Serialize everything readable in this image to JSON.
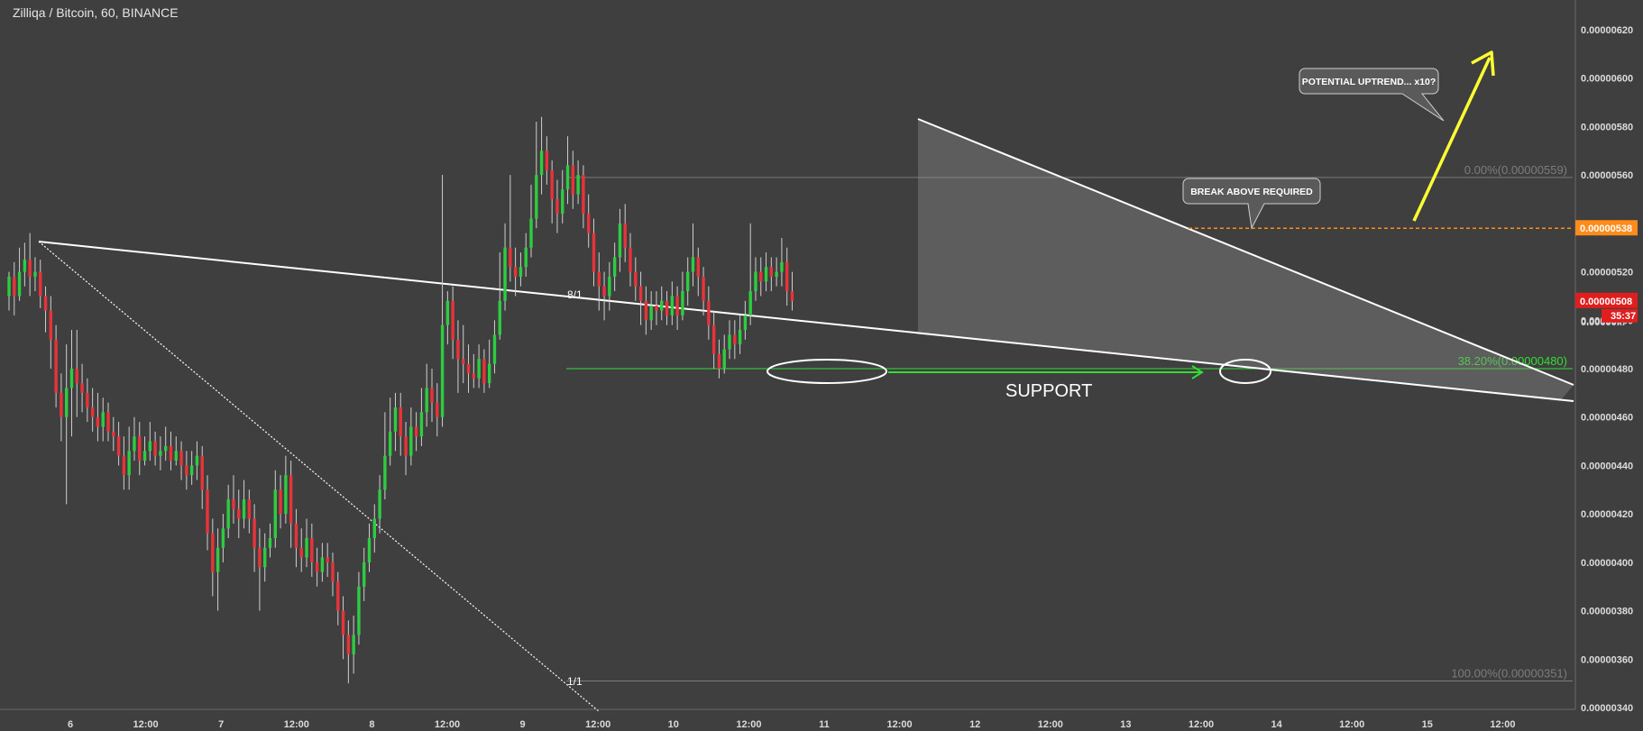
{
  "header": {
    "title": "Zilliqa / Bitcoin, 60, BINANCE"
  },
  "colors": {
    "background": "#3f3f3f",
    "up": "#2ecc40",
    "down": "#e8333a",
    "support": "#33dd33",
    "current_price": "#ff8c1a",
    "last_price": "#e01e1e",
    "arrow": "#ffff33",
    "line": "#ffffff"
  },
  "chart_data": {
    "type": "candlestick",
    "symbol": "Zilliqa / Bitcoin",
    "interval": "60",
    "exchange": "BINANCE",
    "ylim": [
      3.4e-06,
      6.2e-06
    ],
    "y_ticks": [
      "0.00000620",
      "0.00000600",
      "0.00000580",
      "0.00000560",
      "0.00000540",
      "0.00000520",
      "0.00000500",
      "0.00000480",
      "0.00000460",
      "0.00000440",
      "0.00000420",
      "0.00000400",
      "0.00000380",
      "0.00000360",
      "0.00000340"
    ],
    "x_ticks": [
      "6",
      "12:00",
      "7",
      "12:00",
      "8",
      "12:00",
      "9",
      "12:00",
      "10",
      "12:00",
      "11",
      "12:00",
      "12",
      "12:00",
      "13",
      "12:00",
      "14",
      "12:00",
      "15",
      "12:00"
    ],
    "price_labels": {
      "alert": "0.00000538",
      "last": "0.00000508",
      "countdown": "35:37",
      "partial": "0.00000..."
    },
    "fib_levels": [
      {
        "label": "0.00%(0.00000559)",
        "value": 5.59e-06
      },
      {
        "label": "38.20%(0.00000480)",
        "value": 4.8e-06
      },
      {
        "label": "100.00%(0.00000351)",
        "value": 3.51e-06
      }
    ],
    "annotations": {
      "support": "SUPPORT",
      "break_above": "BREAK ABOVE REQUIRED",
      "uptrend": "POTENTIAL UPTREND... x10?",
      "gann_top": "8/1",
      "gann_bottom": "1/1"
    },
    "ohlc": [
      [
        5.1,
        5.18,
        5.2,
        5.04
      ],
      [
        5.18,
        5.1,
        5.24,
        5.02
      ],
      [
        5.1,
        5.2,
        5.3,
        5.08
      ],
      [
        5.2,
        5.25,
        5.32,
        5.14
      ],
      [
        5.25,
        5.18,
        5.36,
        5.1
      ],
      [
        5.18,
        5.2,
        5.26,
        5.12
      ],
      [
        5.2,
        5.1,
        5.25,
        5.05
      ],
      [
        5.1,
        5.04,
        5.14,
        4.95
      ],
      [
        5.04,
        4.92,
        5.1,
        4.8
      ],
      [
        4.92,
        4.7,
        4.98,
        4.64
      ],
      [
        4.7,
        4.6,
        4.78,
        4.5
      ],
      [
        4.6,
        4.72,
        4.9,
        4.24
      ],
      [
        4.72,
        4.8,
        4.96,
        4.52
      ],
      [
        4.8,
        4.74,
        4.96,
        4.6
      ],
      [
        4.74,
        4.7,
        4.82,
        4.62
      ],
      [
        4.7,
        4.64,
        4.76,
        4.58
      ],
      [
        4.64,
        4.6,
        4.72,
        4.54
      ],
      [
        4.6,
        4.56,
        4.7,
        4.5
      ],
      [
        4.56,
        4.62,
        4.68,
        4.5
      ],
      [
        4.62,
        4.54,
        4.66,
        4.5
      ],
      [
        4.54,
        4.52,
        4.6,
        4.46
      ],
      [
        4.52,
        4.44,
        4.58,
        4.4
      ],
      [
        4.44,
        4.36,
        4.52,
        4.3
      ],
      [
        4.36,
        4.46,
        4.56,
        4.3
      ],
      [
        4.46,
        4.52,
        4.6,
        4.42
      ],
      [
        4.52,
        4.42,
        4.58,
        4.36
      ],
      [
        4.42,
        4.46,
        4.52,
        4.4
      ],
      [
        4.46,
        4.5,
        4.58,
        4.42
      ],
      [
        4.5,
        4.44,
        4.54,
        4.4
      ],
      [
        4.44,
        4.46,
        4.52,
        4.38
      ],
      [
        4.46,
        4.48,
        4.56,
        4.42
      ],
      [
        4.48,
        4.42,
        4.54,
        4.38
      ],
      [
        4.42,
        4.46,
        4.52,
        4.4
      ],
      [
        4.46,
        4.4,
        4.5,
        4.34
      ],
      [
        4.4,
        4.36,
        4.46,
        4.3
      ],
      [
        4.36,
        4.4,
        4.46,
        4.32
      ],
      [
        4.4,
        4.44,
        4.5,
        4.34
      ],
      [
        4.44,
        4.3,
        4.48,
        4.22
      ],
      [
        4.3,
        4.12,
        4.36,
        4.05
      ],
      [
        4.12,
        3.96,
        4.18,
        3.86
      ],
      [
        3.96,
        4.06,
        4.14,
        3.8
      ],
      [
        4.06,
        4.14,
        4.2,
        4.0
      ],
      [
        4.14,
        4.26,
        4.32,
        4.1
      ],
      [
        4.26,
        4.22,
        4.36,
        4.16
      ],
      [
        4.22,
        4.18,
        4.3,
        4.1
      ],
      [
        4.18,
        4.26,
        4.34,
        4.14
      ],
      [
        4.26,
        4.18,
        4.3,
        4.12
      ],
      [
        4.18,
        4.06,
        4.24,
        3.96
      ],
      [
        4.06,
        3.98,
        4.14,
        3.8
      ],
      [
        3.98,
        4.06,
        4.12,
        3.92
      ],
      [
        4.06,
        4.1,
        4.16,
        4.02
      ],
      [
        4.1,
        4.3,
        4.38,
        4.06
      ],
      [
        4.3,
        4.2,
        4.36,
        4.14
      ],
      [
        4.2,
        4.36,
        4.44,
        4.16
      ],
      [
        4.36,
        4.16,
        4.42,
        4.06
      ],
      [
        4.16,
        4.06,
        4.22,
        3.98
      ],
      [
        4.06,
        4.02,
        4.14,
        3.96
      ],
      [
        4.02,
        4.1,
        4.18,
        3.98
      ],
      [
        4.1,
        4.0,
        4.16,
        3.94
      ],
      [
        4.0,
        3.96,
        4.06,
        3.9
      ],
      [
        3.96,
        4.02,
        4.08,
        3.92
      ],
      [
        4.02,
        4.0,
        4.08,
        3.94
      ],
      [
        4.0,
        3.92,
        4.04,
        3.86
      ],
      [
        3.92,
        3.8,
        3.96,
        3.74
      ],
      [
        3.8,
        3.7,
        3.86,
        3.6
      ],
      [
        3.7,
        3.62,
        3.76,
        3.5
      ],
      [
        3.62,
        3.7,
        3.78,
        3.54
      ],
      [
        3.7,
        3.9,
        3.96,
        3.66
      ],
      [
        3.9,
        4.0,
        4.06,
        3.84
      ],
      [
        4.0,
        4.1,
        4.16,
        3.96
      ],
      [
        4.1,
        4.18,
        4.24,
        4.04
      ],
      [
        4.18,
        4.3,
        4.36,
        4.12
      ],
      [
        4.3,
        4.44,
        4.62,
        4.26
      ],
      [
        4.44,
        4.54,
        4.68,
        4.4
      ],
      [
        4.54,
        4.64,
        4.7,
        4.46
      ],
      [
        4.64,
        4.52,
        4.7,
        4.44
      ],
      [
        4.52,
        4.44,
        4.58,
        4.36
      ],
      [
        4.44,
        4.56,
        4.64,
        4.4
      ],
      [
        4.56,
        4.52,
        4.62,
        4.46
      ],
      [
        4.52,
        4.62,
        4.72,
        4.48
      ],
      [
        4.62,
        4.72,
        4.82,
        4.56
      ],
      [
        4.72,
        4.66,
        4.8,
        4.58
      ],
      [
        4.66,
        4.6,
        4.74,
        4.52
      ],
      [
        4.6,
        4.98,
        5.6,
        4.56
      ],
      [
        4.98,
        5.08,
        5.12,
        4.9
      ],
      [
        5.08,
        4.92,
        5.14,
        4.84
      ],
      [
        4.92,
        4.84,
        5.0,
        4.7
      ],
      [
        4.84,
        4.82,
        4.98,
        4.74
      ],
      [
        4.82,
        4.78,
        4.9,
        4.7
      ],
      [
        4.78,
        4.76,
        4.86,
        4.72
      ],
      [
        4.76,
        4.84,
        4.9,
        4.72
      ],
      [
        4.84,
        4.74,
        4.88,
        4.7
      ],
      [
        4.74,
        4.82,
        4.92,
        4.72
      ],
      [
        4.82,
        4.94,
        5.0,
        4.78
      ],
      [
        4.94,
        5.08,
        5.28,
        4.92
      ],
      [
        5.08,
        5.3,
        5.4,
        5.04
      ],
      [
        5.3,
        5.22,
        5.6,
        5.16
      ],
      [
        5.22,
        5.18,
        5.3,
        5.1
      ],
      [
        5.18,
        5.22,
        5.28,
        5.14
      ],
      [
        5.22,
        5.3,
        5.36,
        5.18
      ],
      [
        5.3,
        5.42,
        5.56,
        5.26
      ],
      [
        5.42,
        5.6,
        5.82,
        5.38
      ],
      [
        5.6,
        5.7,
        5.84,
        5.52
      ],
      [
        5.7,
        5.62,
        5.76,
        5.56
      ],
      [
        5.62,
        5.5,
        5.66,
        5.4
      ],
      [
        5.5,
        5.44,
        5.58,
        5.36
      ],
      [
        5.44,
        5.54,
        5.62,
        5.4
      ],
      [
        5.54,
        5.64,
        5.76,
        5.48
      ],
      [
        5.64,
        5.52,
        5.7,
        5.46
      ],
      [
        5.52,
        5.6,
        5.66,
        5.48
      ],
      [
        5.6,
        5.44,
        5.64,
        5.38
      ],
      [
        5.44,
        5.36,
        5.52,
        5.3
      ],
      [
        5.36,
        5.2,
        5.42,
        5.14
      ],
      [
        5.2,
        5.14,
        5.28,
        5.04
      ],
      [
        5.14,
        5.1,
        5.2,
        5.0
      ],
      [
        5.1,
        5.18,
        5.24,
        5.04
      ],
      [
        5.18,
        5.26,
        5.32,
        5.12
      ],
      [
        5.26,
        5.4,
        5.46,
        5.2
      ],
      [
        5.4,
        5.3,
        5.48,
        5.24
      ],
      [
        5.3,
        5.2,
        5.36,
        5.14
      ],
      [
        5.2,
        5.14,
        5.26,
        5.08
      ],
      [
        5.14,
        5.08,
        5.2,
        4.98
      ],
      [
        5.08,
        5.0,
        5.14,
        4.94
      ],
      [
        5.0,
        5.06,
        5.12,
        4.96
      ],
      [
        5.06,
        5.04,
        5.12,
        4.98
      ],
      [
        5.04,
        5.08,
        5.14,
        5.0
      ],
      [
        5.08,
        5.02,
        5.12,
        4.98
      ],
      [
        5.02,
        5.1,
        5.16,
        4.98
      ],
      [
        5.1,
        5.02,
        5.14,
        4.96
      ],
      [
        5.02,
        5.12,
        5.2,
        5.0
      ],
      [
        5.12,
        5.2,
        5.26,
        5.06
      ],
      [
        5.2,
        5.26,
        5.4,
        5.14
      ],
      [
        5.26,
        5.18,
        5.3,
        5.1
      ],
      [
        5.18,
        5.08,
        5.22,
        5.02
      ],
      [
        5.08,
        4.98,
        5.14,
        4.92
      ],
      [
        4.98,
        4.86,
        5.04,
        4.8
      ],
      [
        4.86,
        4.8,
        4.92,
        4.76
      ],
      [
        4.8,
        4.88,
        4.94,
        4.78
      ],
      [
        4.88,
        4.94,
        5.0,
        4.84
      ],
      [
        4.94,
        4.9,
        5.0,
        4.84
      ],
      [
        4.9,
        4.96,
        5.02,
        4.86
      ],
      [
        4.96,
        5.02,
        5.08,
        4.92
      ],
      [
        5.02,
        5.12,
        5.4,
        4.98
      ],
      [
        5.12,
        5.2,
        5.26,
        5.08
      ],
      [
        5.2,
        5.16,
        5.26,
        5.1
      ],
      [
        5.16,
        5.22,
        5.28,
        5.12
      ],
      [
        5.22,
        5.18,
        5.26,
        5.12
      ],
      [
        5.18,
        5.2,
        5.26,
        5.14
      ],
      [
        5.2,
        5.24,
        5.34,
        5.14
      ],
      [
        5.24,
        5.12,
        5.3,
        5.06
      ],
      [
        5.12,
        5.08,
        5.2,
        5.04
      ]
    ]
  }
}
